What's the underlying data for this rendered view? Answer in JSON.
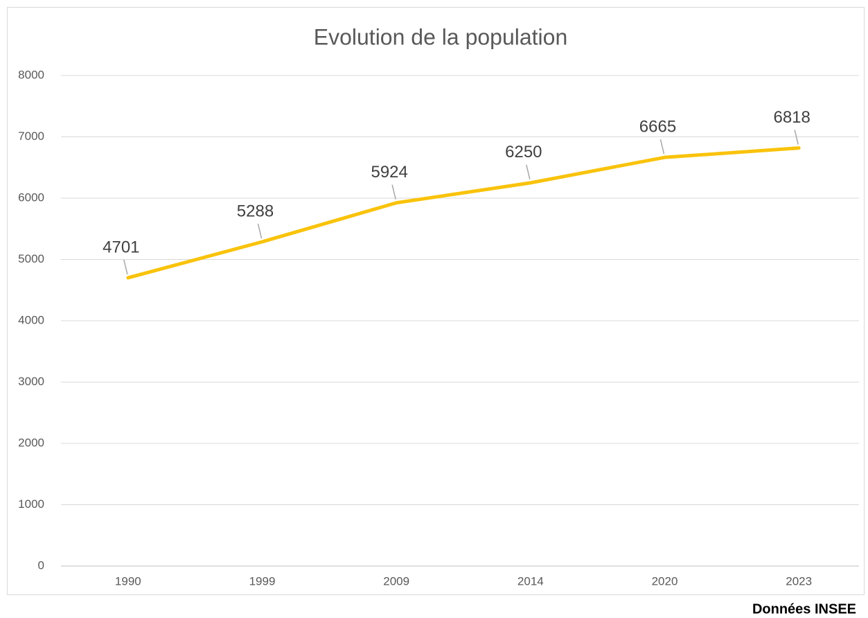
{
  "chart_data": {
    "type": "line",
    "title": "Evolution de la population",
    "categories": [
      "1990",
      "1999",
      "2009",
      "2014",
      "2020",
      "2023"
    ],
    "series": [
      {
        "name": "Population",
        "color": "#f9c30c",
        "values": [
          4701,
          5288,
          5924,
          6250,
          6665,
          6818
        ]
      }
    ],
    "ylim": [
      0,
      8000
    ],
    "yticks": [
      0,
      1000,
      2000,
      3000,
      4000,
      5000,
      6000,
      7000,
      8000
    ],
    "grid": true,
    "source": "Données INSEE"
  }
}
